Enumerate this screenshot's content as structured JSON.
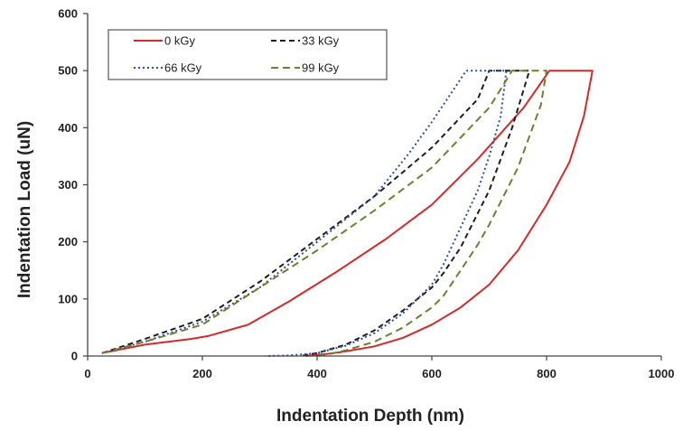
{
  "chart_data": {
    "type": "line",
    "title": "",
    "xlabel": "Indentation Depth (nm)",
    "ylabel": "Indentation Load (uN)",
    "xlim": [
      0,
      1000
    ],
    "ylim": [
      0,
      600
    ],
    "xticks": [
      0,
      200,
      400,
      600,
      800,
      1000
    ],
    "yticks": [
      0,
      100,
      200,
      300,
      400,
      500,
      600
    ],
    "grid": false,
    "legend_position": "top-left",
    "series": [
      {
        "name": "0 kGy",
        "color": "#d42a2a",
        "dash": "solid",
        "x": [
          25,
          100,
          180,
          210,
          280,
          350,
          430,
          520,
          600,
          680,
          760,
          805,
          880,
          865,
          840,
          800,
          750,
          700,
          650,
          600,
          550,
          500,
          450,
          420,
          400,
          380
        ],
        "y": [
          5,
          20,
          30,
          35,
          55,
          95,
          145,
          205,
          265,
          345,
          435,
          500,
          500,
          420,
          340,
          265,
          185,
          125,
          85,
          55,
          32,
          17,
          8,
          4,
          2,
          0
        ]
      },
      {
        "name": "33 kGy",
        "color": "#1e1e1e",
        "dash": "6,4",
        "x": [
          25,
          100,
          200,
          300,
          400,
          500,
          600,
          680,
          700,
          770,
          755,
          740,
          720,
          700,
          680,
          650,
          620,
          600,
          550,
          500,
          450,
          400,
          370
        ],
        "y": [
          5,
          30,
          65,
          130,
          205,
          280,
          365,
          450,
          500,
          500,
          450,
          400,
          345,
          290,
          250,
          190,
          145,
          120,
          80,
          45,
          20,
          5,
          0
        ]
      },
      {
        "name": "66 kGy",
        "color": "#2a4fa8",
        "dash": "2,3",
        "x": [
          25,
          100,
          200,
          300,
          400,
          500,
          560,
          600,
          640,
          660,
          730,
          720,
          700,
          680,
          650,
          620,
          600,
          550,
          500,
          450,
          400,
          350,
          310
        ],
        "y": [
          5,
          25,
          60,
          120,
          200,
          280,
          355,
          410,
          470,
          500,
          500,
          420,
          350,
          290,
          225,
          160,
          125,
          75,
          40,
          18,
          5,
          1,
          0
        ]
      },
      {
        "name": "99 kGy",
        "color": "#6f7f2f",
        "dash": "8,5",
        "x": [
          25,
          100,
          200,
          300,
          400,
          500,
          600,
          700,
          740,
          800,
          790,
          770,
          750,
          720,
          700,
          680,
          650,
          620,
          600,
          550,
          500,
          450,
          420,
          400
        ],
        "y": [
          5,
          25,
          55,
          120,
          185,
          255,
          330,
          435,
          500,
          500,
          440,
          385,
          330,
          270,
          230,
          195,
          150,
          105,
          85,
          50,
          25,
          10,
          3,
          0
        ]
      }
    ]
  }
}
